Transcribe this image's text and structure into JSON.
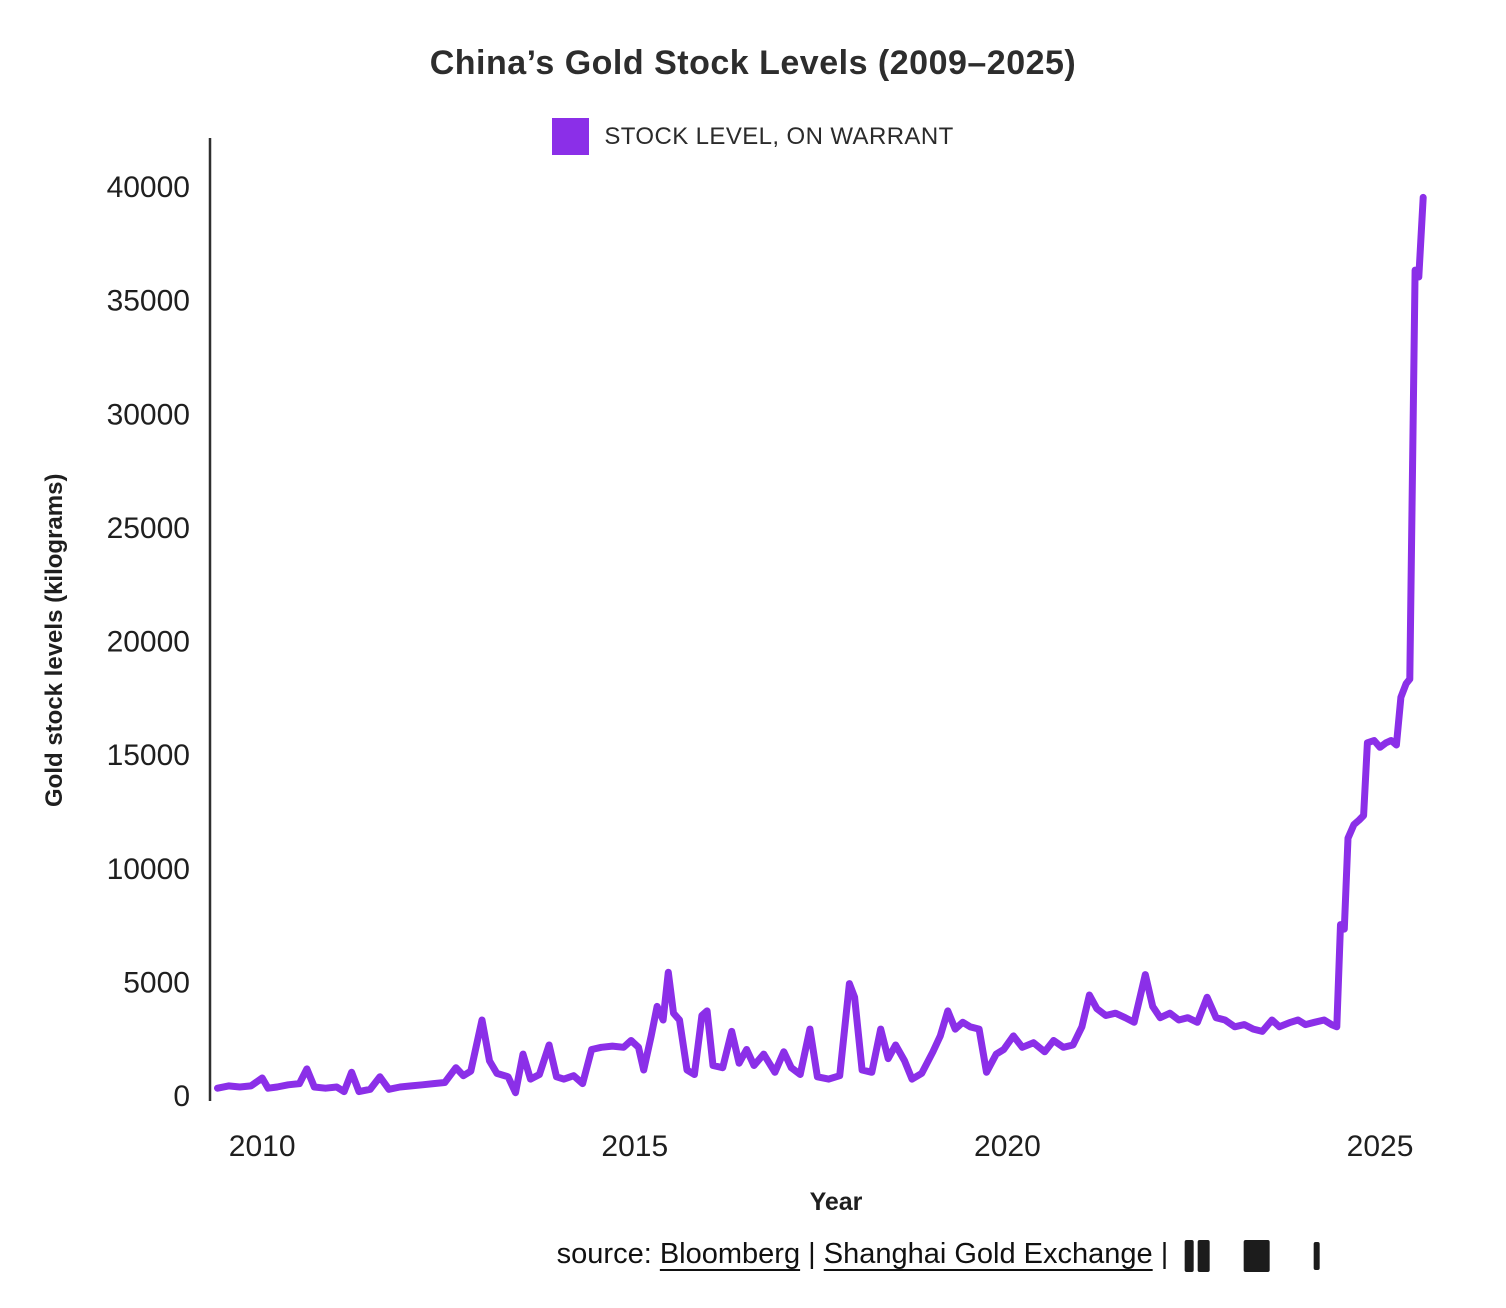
{
  "page": {
    "title": "China’s Gold Stock Levels (2009–2025)",
    "legend": {
      "label": "STOCK LEVEL, ON WARRANT",
      "color": "#8B2FE8"
    },
    "y_axis_label": "Gold stock levels (kilograms)",
    "x_axis_label": "Year",
    "source": {
      "prefix": "source: ",
      "links": [
        "Bloomberg",
        "Shanghai Gold Exchange"
      ],
      "separator": " | "
    }
  },
  "chart_data": {
    "type": "line",
    "title": "China’s Gold Stock Levels (2009–2025)",
    "xlabel": "Year",
    "ylabel": "Gold stock levels (kilograms)",
    "xlim": [
      2009.3,
      2026.1
    ],
    "ylim": [
      0,
      40000
    ],
    "x_ticks": [
      2010,
      2015,
      2020,
      2025
    ],
    "y_ticks": [
      0,
      5000,
      10000,
      15000,
      20000,
      25000,
      30000,
      35000,
      40000
    ],
    "grid": false,
    "legend_position": "top-center",
    "series": [
      {
        "name": "STOCK LEVEL, ON WARRANT",
        "color": "#8B2FE8",
        "points": [
          [
            2009.4,
            300
          ],
          [
            2009.55,
            400
          ],
          [
            2009.7,
            350
          ],
          [
            2009.85,
            400
          ],
          [
            2010.0,
            750
          ],
          [
            2010.08,
            300
          ],
          [
            2010.2,
            350
          ],
          [
            2010.35,
            450
          ],
          [
            2010.5,
            500
          ],
          [
            2010.6,
            1150
          ],
          [
            2010.7,
            350
          ],
          [
            2010.85,
            300
          ],
          [
            2011.0,
            350
          ],
          [
            2011.1,
            150
          ],
          [
            2011.2,
            1000
          ],
          [
            2011.3,
            150
          ],
          [
            2011.45,
            250
          ],
          [
            2011.58,
            800
          ],
          [
            2011.7,
            250
          ],
          [
            2011.85,
            350
          ],
          [
            2012.0,
            400
          ],
          [
            2012.15,
            450
          ],
          [
            2012.3,
            500
          ],
          [
            2012.45,
            550
          ],
          [
            2012.6,
            1200
          ],
          [
            2012.7,
            850
          ],
          [
            2012.8,
            1050
          ],
          [
            2012.95,
            3300
          ],
          [
            2013.05,
            1500
          ],
          [
            2013.15,
            950
          ],
          [
            2013.3,
            800
          ],
          [
            2013.4,
            100
          ],
          [
            2013.5,
            1800
          ],
          [
            2013.6,
            700
          ],
          [
            2013.72,
            900
          ],
          [
            2013.85,
            2200
          ],
          [
            2013.95,
            800
          ],
          [
            2014.05,
            700
          ],
          [
            2014.18,
            850
          ],
          [
            2014.3,
            500
          ],
          [
            2014.42,
            2000
          ],
          [
            2014.55,
            2100
          ],
          [
            2014.7,
            2150
          ],
          [
            2014.85,
            2100
          ],
          [
            2014.95,
            2400
          ],
          [
            2015.05,
            2100
          ],
          [
            2015.12,
            1100
          ],
          [
            2015.22,
            2600
          ],
          [
            2015.3,
            3900
          ],
          [
            2015.38,
            3300
          ],
          [
            2015.45,
            5400
          ],
          [
            2015.52,
            3600
          ],
          [
            2015.6,
            3300
          ],
          [
            2015.7,
            1100
          ],
          [
            2015.8,
            900
          ],
          [
            2015.9,
            3500
          ],
          [
            2015.97,
            3700
          ],
          [
            2016.05,
            1300
          ],
          [
            2016.18,
            1200
          ],
          [
            2016.3,
            2800
          ],
          [
            2016.4,
            1400
          ],
          [
            2016.5,
            2000
          ],
          [
            2016.6,
            1300
          ],
          [
            2016.73,
            1800
          ],
          [
            2016.88,
            1000
          ],
          [
            2017.0,
            1900
          ],
          [
            2017.1,
            1200
          ],
          [
            2017.22,
            900
          ],
          [
            2017.35,
            2900
          ],
          [
            2017.45,
            800
          ],
          [
            2017.6,
            700
          ],
          [
            2017.75,
            850
          ],
          [
            2017.88,
            4900
          ],
          [
            2017.95,
            4300
          ],
          [
            2018.05,
            1100
          ],
          [
            2018.18,
            1000
          ],
          [
            2018.3,
            2900
          ],
          [
            2018.4,
            1600
          ],
          [
            2018.5,
            2200
          ],
          [
            2018.62,
            1500
          ],
          [
            2018.72,
            700
          ],
          [
            2018.85,
            950
          ],
          [
            2019.0,
            1900
          ],
          [
            2019.1,
            2600
          ],
          [
            2019.2,
            3700
          ],
          [
            2019.3,
            2900
          ],
          [
            2019.4,
            3200
          ],
          [
            2019.5,
            3000
          ],
          [
            2019.62,
            2900
          ],
          [
            2019.72,
            1000
          ],
          [
            2019.85,
            1800
          ],
          [
            2019.95,
            2000
          ],
          [
            2020.08,
            2600
          ],
          [
            2020.2,
            2100
          ],
          [
            2020.35,
            2300
          ],
          [
            2020.5,
            1900
          ],
          [
            2020.62,
            2400
          ],
          [
            2020.75,
            2100
          ],
          [
            2020.88,
            2200
          ],
          [
            2021.0,
            3000
          ],
          [
            2021.1,
            4400
          ],
          [
            2021.2,
            3800
          ],
          [
            2021.32,
            3500
          ],
          [
            2021.45,
            3600
          ],
          [
            2021.58,
            3400
          ],
          [
            2021.7,
            3200
          ],
          [
            2021.85,
            5300
          ],
          [
            2021.95,
            3900
          ],
          [
            2022.05,
            3400
          ],
          [
            2022.18,
            3600
          ],
          [
            2022.3,
            3300
          ],
          [
            2022.42,
            3400
          ],
          [
            2022.55,
            3200
          ],
          [
            2022.68,
            4300
          ],
          [
            2022.8,
            3400
          ],
          [
            2022.92,
            3300
          ],
          [
            2023.05,
            3000
          ],
          [
            2023.18,
            3100
          ],
          [
            2023.3,
            2900
          ],
          [
            2023.42,
            2800
          ],
          [
            2023.55,
            3300
          ],
          [
            2023.65,
            3000
          ],
          [
            2023.8,
            3200
          ],
          [
            2023.9,
            3300
          ],
          [
            2024.0,
            3100
          ],
          [
            2024.12,
            3200
          ],
          [
            2024.25,
            3300
          ],
          [
            2024.35,
            3100
          ],
          [
            2024.42,
            3000
          ],
          [
            2024.47,
            7500
          ],
          [
            2024.52,
            7300
          ],
          [
            2024.57,
            11300
          ],
          [
            2024.65,
            11900
          ],
          [
            2024.72,
            12100
          ],
          [
            2024.78,
            12300
          ],
          [
            2024.83,
            15500
          ],
          [
            2024.92,
            15600
          ],
          [
            2025.0,
            15300
          ],
          [
            2025.08,
            15500
          ],
          [
            2025.15,
            15600
          ],
          [
            2025.22,
            15400
          ],
          [
            2025.28,
            17500
          ],
          [
            2025.35,
            18100
          ],
          [
            2025.4,
            18300
          ],
          [
            2025.47,
            36300
          ],
          [
            2025.52,
            36000
          ],
          [
            2025.58,
            39500
          ]
        ]
      }
    ]
  }
}
